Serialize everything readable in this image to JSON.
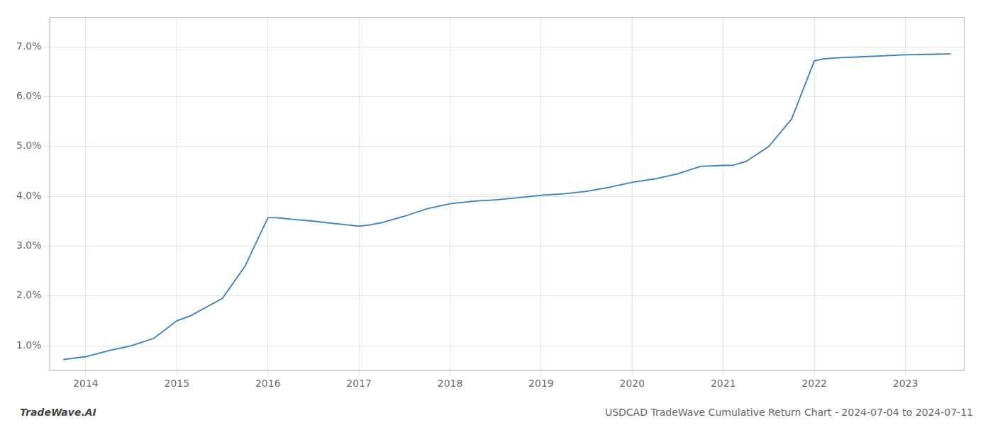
{
  "chart_data": {
    "type": "line",
    "x": [
      2013.75,
      2014.0,
      2014.25,
      2014.5,
      2014.75,
      2015.0,
      2015.15,
      2015.3,
      2015.5,
      2015.75,
      2016.0,
      2016.1,
      2016.25,
      2016.5,
      2016.75,
      2017.0,
      2017.1,
      2017.25,
      2017.5,
      2017.75,
      2018.0,
      2018.25,
      2018.5,
      2018.75,
      2019.0,
      2019.25,
      2019.5,
      2019.75,
      2020.0,
      2020.25,
      2020.5,
      2020.75,
      2021.0,
      2021.1,
      2021.25,
      2021.5,
      2021.75,
      2022.0,
      2022.1,
      2022.25,
      2022.5,
      2022.75,
      2023.0,
      2023.25,
      2023.5
    ],
    "values": [
      0.72,
      0.78,
      0.9,
      1.0,
      1.15,
      1.5,
      1.6,
      1.75,
      1.95,
      2.6,
      3.57,
      3.57,
      3.54,
      3.5,
      3.45,
      3.4,
      3.42,
      3.47,
      3.6,
      3.75,
      3.85,
      3.9,
      3.93,
      3.97,
      4.02,
      4.05,
      4.1,
      4.18,
      4.28,
      4.35,
      4.45,
      4.6,
      4.62,
      4.62,
      4.7,
      5.0,
      5.55,
      6.72,
      6.76,
      6.78,
      6.8,
      6.82,
      6.84,
      6.85,
      6.86
    ],
    "color": "#3a7ebf",
    "xlim": [
      2013.6,
      2023.65
    ],
    "ylim": [
      0.5,
      7.6
    ],
    "xticks": [
      2014,
      2015,
      2016,
      2017,
      2018,
      2019,
      2020,
      2021,
      2022,
      2023
    ],
    "yticks": [
      {
        "value": 1.0,
        "label": "1.0%"
      },
      {
        "value": 2.0,
        "label": "2.0%"
      },
      {
        "value": 3.0,
        "label": "3.0%"
      },
      {
        "value": 4.0,
        "label": "4.0%"
      },
      {
        "value": 5.0,
        "label": "5.0%"
      },
      {
        "value": 6.0,
        "label": "6.0%"
      },
      {
        "value": 7.0,
        "label": "7.0%"
      }
    ],
    "grid": true,
    "annotations": [
      "TradeWave.AI",
      "USDCAD TradeWave Cumulative Return Chart - 2024-07-04 to 2024-07-11"
    ]
  }
}
